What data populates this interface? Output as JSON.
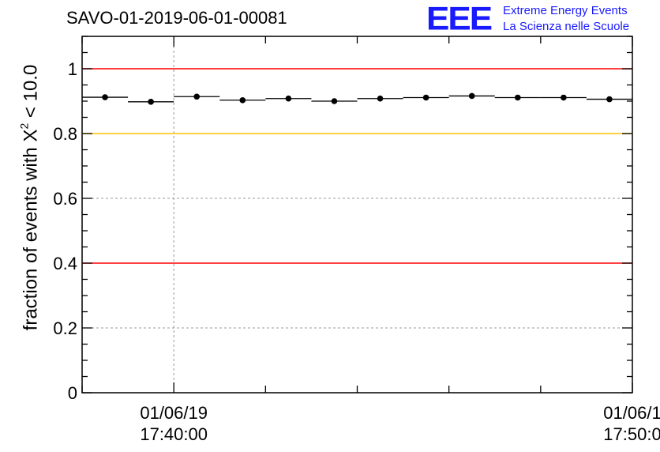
{
  "chart_data": {
    "type": "scatter",
    "title": "SAVO-01-2019-06-01-00081",
    "ylabel_prefix": "fraction of events with X",
    "ylabel_sup": "2",
    "ylabel_suffix": " < 10.0",
    "ylim": [
      0,
      1.1
    ],
    "yticks": [
      {
        "value": 0,
        "label": "0"
      },
      {
        "value": 0.2,
        "label": "0.2"
      },
      {
        "value": 0.4,
        "label": "0.4"
      },
      {
        "value": 0.6,
        "label": "0.6"
      },
      {
        "value": 0.8,
        "label": "0.8"
      },
      {
        "value": 1.0,
        "label": "1"
      }
    ],
    "xlim_minutes": [
      38.0,
      50.0
    ],
    "xticks": [
      {
        "minute": 40,
        "label_date": "01/06/19",
        "label_time": "17:40:00"
      },
      {
        "minute": 50,
        "label_date": "01/06/1",
        "label_time": "17:50:0"
      }
    ],
    "grid": true,
    "reference_lines": [
      {
        "value": 1.0,
        "color": "#ff0000"
      },
      {
        "value": 0.8,
        "color": "#ffc000"
      },
      {
        "value": 0.4,
        "color": "#ff0000"
      }
    ],
    "points": [
      {
        "x": 38.5,
        "y": 0.912,
        "x0": 38.0,
        "x1": 39.0
      },
      {
        "x": 39.5,
        "y": 0.898,
        "x0": 39.0,
        "x1": 40.0
      },
      {
        "x": 40.5,
        "y": 0.914,
        "x0": 40.0,
        "x1": 41.0
      },
      {
        "x": 41.5,
        "y": 0.903,
        "x0": 41.0,
        "x1": 42.0
      },
      {
        "x": 42.5,
        "y": 0.908,
        "x0": 42.0,
        "x1": 43.0
      },
      {
        "x": 43.5,
        "y": 0.9,
        "x0": 43.0,
        "x1": 44.0
      },
      {
        "x": 44.5,
        "y": 0.908,
        "x0": 44.0,
        "x1": 45.0
      },
      {
        "x": 45.5,
        "y": 0.911,
        "x0": 45.0,
        "x1": 46.0
      },
      {
        "x": 46.5,
        "y": 0.916,
        "x0": 46.0,
        "x1": 47.0
      },
      {
        "x": 47.5,
        "y": 0.911,
        "x0": 47.0,
        "x1": 48.0
      },
      {
        "x": 48.5,
        "y": 0.911,
        "x0": 48.0,
        "x1": 49.0
      },
      {
        "x": 49.5,
        "y": 0.906,
        "x0": 49.0,
        "x1": 50.0
      }
    ],
    "point_color": "#000000"
  },
  "logo": {
    "mark": "EEE",
    "line1": "Extreme Energy Events",
    "line2": "La Scienza nelle Scuole",
    "color": "#1a1aff"
  }
}
